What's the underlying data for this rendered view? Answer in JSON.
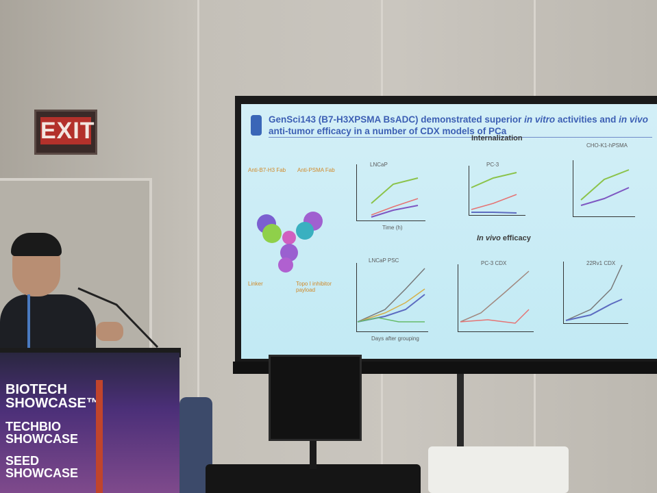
{
  "exit_sign": "EXIT",
  "slide": {
    "title": [
      "GenSci143 (B7-H3XPSMA BsADC) demonstrated superior ",
      "in vitro",
      " activities and ",
      "in",
      " ",
      "vivo",
      " anti-tumor efficacy in a number of CDX models of PCa"
    ],
    "section_top": "Internalization",
    "section_bottom": [
      "In vivo",
      " efficacy"
    ],
    "left_labels": [
      "Anti-B7-H3 Fab",
      "Anti-PSMA Fab",
      "Linker",
      "Topo I inhibitor payload"
    ],
    "top_charts": [
      "LNCaP",
      "PC-3",
      "CHO-K1-hPSMA"
    ],
    "bottom_charts": [
      "LNCaP PSC",
      "PC-3 CDX",
      "22Rv1 CDX"
    ],
    "top_x_label": "Time (h)",
    "bottom_x_label": "Days after grouping"
  },
  "podium": {
    "lines": [
      "BIOTECH",
      "SHOWCASE™",
      "TECHBIO",
      "SHOWCASE",
      "SEED",
      "SHOWCASE"
    ]
  }
}
